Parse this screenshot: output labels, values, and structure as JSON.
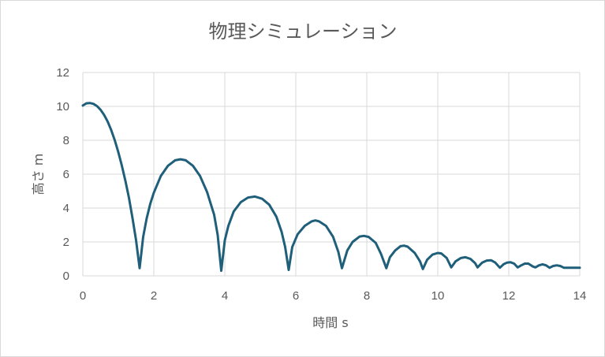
{
  "chart_data": {
    "type": "line",
    "title": "物理シミュレーション",
    "xlabel": "時間 s",
    "ylabel": "高さ m",
    "xlim": [
      0,
      14
    ],
    "ylim": [
      0,
      12
    ],
    "x_ticks": [
      0,
      2,
      4,
      6,
      8,
      10,
      12,
      14
    ],
    "y_ticks": [
      0,
      2,
      4,
      6,
      8,
      10,
      12
    ],
    "grid": true,
    "legend": "none",
    "series": [
      {
        "color": "#1f5f7a",
        "points": [
          [
            0.0,
            10.05
          ],
          [
            0.1,
            10.18
          ],
          [
            0.2,
            10.2
          ],
          [
            0.3,
            10.15
          ],
          [
            0.4,
            10.02
          ],
          [
            0.5,
            9.8
          ],
          [
            0.6,
            9.5
          ],
          [
            0.7,
            9.1
          ],
          [
            0.8,
            8.6
          ],
          [
            0.9,
            8.0
          ],
          [
            1.0,
            7.3
          ],
          [
            1.1,
            6.5
          ],
          [
            1.2,
            5.6
          ],
          [
            1.3,
            4.6
          ],
          [
            1.4,
            3.4
          ],
          [
            1.5,
            2.1
          ],
          [
            1.6,
            0.45
          ],
          [
            1.7,
            2.3
          ],
          [
            1.8,
            3.4
          ],
          [
            1.9,
            4.25
          ],
          [
            2.0,
            4.9
          ],
          [
            2.2,
            5.9
          ],
          [
            2.4,
            6.5
          ],
          [
            2.6,
            6.82
          ],
          [
            2.75,
            6.88
          ],
          [
            2.9,
            6.82
          ],
          [
            3.1,
            6.5
          ],
          [
            3.3,
            5.9
          ],
          [
            3.5,
            4.95
          ],
          [
            3.7,
            3.6
          ],
          [
            3.8,
            2.4
          ],
          [
            3.9,
            0.3
          ],
          [
            4.0,
            2.1
          ],
          [
            4.1,
            2.95
          ],
          [
            4.25,
            3.8
          ],
          [
            4.45,
            4.35
          ],
          [
            4.65,
            4.62
          ],
          [
            4.85,
            4.68
          ],
          [
            5.05,
            4.55
          ],
          [
            5.25,
            4.2
          ],
          [
            5.45,
            3.5
          ],
          [
            5.6,
            2.6
          ],
          [
            5.7,
            1.7
          ],
          [
            5.8,
            0.35
          ],
          [
            5.9,
            1.7
          ],
          [
            6.05,
            2.45
          ],
          [
            6.25,
            2.95
          ],
          [
            6.45,
            3.22
          ],
          [
            6.55,
            3.27
          ],
          [
            6.65,
            3.22
          ],
          [
            6.85,
            2.95
          ],
          [
            7.05,
            2.3
          ],
          [
            7.2,
            1.4
          ],
          [
            7.3,
            0.45
          ],
          [
            7.45,
            1.5
          ],
          [
            7.6,
            2.0
          ],
          [
            7.8,
            2.32
          ],
          [
            7.92,
            2.36
          ],
          [
            8.05,
            2.3
          ],
          [
            8.25,
            1.95
          ],
          [
            8.4,
            1.3
          ],
          [
            8.55,
            0.45
          ],
          [
            8.65,
            1.1
          ],
          [
            8.8,
            1.5
          ],
          [
            8.95,
            1.75
          ],
          [
            9.05,
            1.78
          ],
          [
            9.15,
            1.72
          ],
          [
            9.35,
            1.35
          ],
          [
            9.5,
            0.85
          ],
          [
            9.58,
            0.4
          ],
          [
            9.7,
            0.95
          ],
          [
            9.85,
            1.25
          ],
          [
            10.0,
            1.35
          ],
          [
            10.1,
            1.32
          ],
          [
            10.25,
            1.05
          ],
          [
            10.38,
            0.5
          ],
          [
            10.5,
            0.85
          ],
          [
            10.65,
            1.05
          ],
          [
            10.78,
            1.1
          ],
          [
            10.92,
            1.0
          ],
          [
            11.05,
            0.75
          ],
          [
            11.12,
            0.5
          ],
          [
            11.25,
            0.78
          ],
          [
            11.38,
            0.9
          ],
          [
            11.5,
            0.92
          ],
          [
            11.62,
            0.78
          ],
          [
            11.75,
            0.48
          ],
          [
            11.85,
            0.68
          ],
          [
            11.95,
            0.78
          ],
          [
            12.05,
            0.8
          ],
          [
            12.15,
            0.72
          ],
          [
            12.25,
            0.5
          ],
          [
            12.35,
            0.62
          ],
          [
            12.45,
            0.72
          ],
          [
            12.55,
            0.72
          ],
          [
            12.68,
            0.55
          ],
          [
            12.75,
            0.5
          ],
          [
            12.85,
            0.62
          ],
          [
            12.95,
            0.68
          ],
          [
            13.05,
            0.62
          ],
          [
            13.15,
            0.48
          ],
          [
            13.25,
            0.58
          ],
          [
            13.35,
            0.62
          ],
          [
            13.45,
            0.58
          ],
          [
            13.55,
            0.48
          ],
          [
            14.0,
            0.48
          ]
        ]
      }
    ]
  }
}
